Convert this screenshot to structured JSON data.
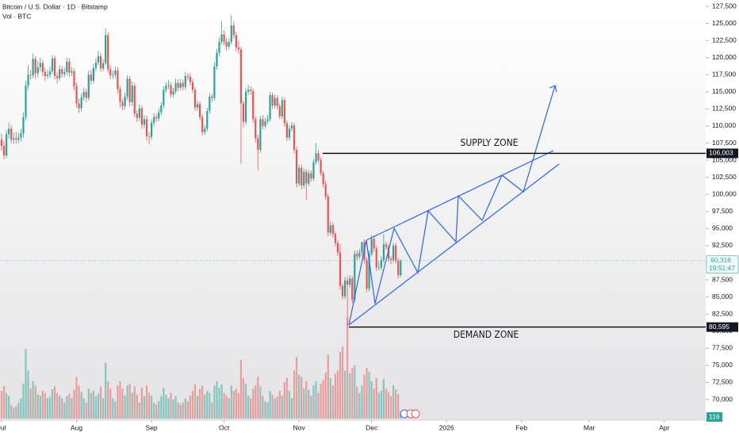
{
  "chart_data": {
    "type": "candlestick",
    "title": "Bitcoin / U.S. Dollar · 1D · Bitstamp",
    "volume_title": "Vol · BTC",
    "up_color": "#26a69a",
    "down_color": "#ef5350",
    "ylim": [
      70000,
      127500
    ],
    "yticks": [
      {
        "value": 70000,
        "label": "70,000"
      },
      {
        "value": 72500,
        "label": "72,500"
      },
      {
        "value": 75000,
        "label": "75,000"
      },
      {
        "value": 77500,
        "label": "77,500"
      },
      {
        "value": 80000,
        "label": "80,000"
      },
      {
        "value": 82500,
        "label": "82,500"
      },
      {
        "value": 85000,
        "label": "85,000"
      },
      {
        "value": 87500,
        "label": "87,500"
      },
      {
        "value": 90000,
        "label": "90,000"
      },
      {
        "value": 92500,
        "label": "92,500"
      },
      {
        "value": 95000,
        "label": "95,000"
      },
      {
        "value": 97500,
        "label": "97,500"
      },
      {
        "value": 100000,
        "label": "100,000"
      },
      {
        "value": 102500,
        "label": "102,500"
      },
      {
        "value": 105000,
        "label": "105,000"
      },
      {
        "value": 107500,
        "label": "107,500"
      },
      {
        "value": 110000,
        "label": "110,000"
      },
      {
        "value": 112500,
        "label": "112,500"
      },
      {
        "value": 115000,
        "label": "115,000"
      },
      {
        "value": 117500,
        "label": "117,500"
      },
      {
        "value": 120000,
        "label": "120,000"
      },
      {
        "value": 122500,
        "label": "122,500"
      },
      {
        "value": 125000,
        "label": "125,000"
      },
      {
        "value": 127500,
        "label": "127,500"
      }
    ],
    "xticks": [
      {
        "value": 0,
        "label": "Jul"
      },
      {
        "value": 31,
        "label": "Aug"
      },
      {
        "value": 62,
        "label": "Sep"
      },
      {
        "value": 92,
        "label": "Oct"
      },
      {
        "value": 123,
        "label": "Nov"
      },
      {
        "value": 153,
        "label": "Dec"
      },
      {
        "value": 184,
        "label": "2026"
      },
      {
        "value": 215,
        "label": "Feb"
      },
      {
        "value": 243,
        "label": "Mar"
      },
      {
        "value": 274,
        "label": "Apr"
      }
    ],
    "last_price": {
      "value": 90316,
      "label": "90,316"
    },
    "countdown": "19:51:47",
    "levels": [
      {
        "value": 106003,
        "label": "106,003",
        "name": "SUPPLY ZONE"
      },
      {
        "value": 80595,
        "label": "80,595",
        "name": "DEMAND ZONE"
      }
    ],
    "candles": [
      [
        108000,
        108900,
        106400,
        107100
      ],
      [
        107100,
        107800,
        105100,
        105700
      ],
      [
        105700,
        109400,
        105300,
        108800
      ],
      [
        108800,
        110500,
        108200,
        109600
      ],
      [
        109600,
        110100,
        107500,
        108000
      ],
      [
        108000,
        109000,
        107400,
        108200
      ],
      [
        108200,
        109100,
        107400,
        108000
      ],
      [
        108000,
        109000,
        107500,
        108300
      ],
      [
        108300,
        109600,
        107700,
        108900
      ],
      [
        108900,
        112000,
        108300,
        111300
      ],
      [
        111300,
        116600,
        110800,
        115900
      ],
      [
        115900,
        118900,
        115300,
        117500
      ],
      [
        117500,
        118200,
        116800,
        117400
      ],
      [
        117400,
        120600,
        117000,
        119800
      ],
      [
        119800,
        120200,
        116900,
        117700
      ],
      [
        117700,
        119500,
        117100,
        118600
      ],
      [
        118600,
        120000,
        118000,
        119200
      ],
      [
        119200,
        119700,
        117300,
        117900
      ],
      [
        117900,
        118500,
        116600,
        117300
      ],
      [
        117300,
        118200,
        116900,
        117500
      ],
      [
        117500,
        118700,
        117000,
        118000
      ],
      [
        118000,
        120400,
        117600,
        119900
      ],
      [
        119900,
        120300,
        116800,
        117300
      ],
      [
        117300,
        117900,
        116200,
        117000
      ],
      [
        117000,
        118900,
        116600,
        118300
      ],
      [
        118300,
        118800,
        117100,
        117600
      ],
      [
        117600,
        118500,
        117200,
        117900
      ],
      [
        117900,
        120000,
        117400,
        119400
      ],
      [
        119400,
        119900,
        117200,
        117800
      ],
      [
        117800,
        118600,
        117300,
        118000
      ],
      [
        118000,
        118400,
        115200,
        115800
      ],
      [
        115800,
        116300,
        112700,
        113300
      ],
      [
        113300,
        114000,
        111900,
        112600
      ],
      [
        112600,
        114800,
        112100,
        114200
      ],
      [
        114200,
        115600,
        113700,
        115000
      ],
      [
        115000,
        115500,
        113500,
        114100
      ],
      [
        114100,
        118100,
        113700,
        117500
      ],
      [
        117500,
        118200,
        116000,
        116600
      ],
      [
        116600,
        119100,
        116200,
        118500
      ],
      [
        118500,
        119900,
        118000,
        119300
      ],
      [
        119300,
        121000,
        118900,
        120200
      ],
      [
        120200,
        120700,
        117900,
        118400
      ],
      [
        118400,
        119800,
        118000,
        119200
      ],
      [
        119200,
        124300,
        118900,
        123300
      ],
      [
        123300,
        123700,
        117800,
        118300
      ],
      [
        118300,
        118900,
        116900,
        117400
      ],
      [
        117400,
        118100,
        116900,
        117500
      ],
      [
        117500,
        118700,
        117000,
        118100
      ],
      [
        118100,
        118600,
        114800,
        115400
      ],
      [
        115400,
        115900,
        112700,
        113500
      ],
      [
        113500,
        114000,
        112300,
        112900
      ],
      [
        112900,
        114900,
        112400,
        114300
      ],
      [
        114300,
        117400,
        113800,
        116900
      ],
      [
        116900,
        117300,
        112900,
        113500
      ],
      [
        113500,
        116500,
        113000,
        115900
      ],
      [
        115900,
        116300,
        111300,
        111800
      ],
      [
        111800,
        112300,
        110600,
        111200
      ],
      [
        111200,
        113200,
        110700,
        112600
      ],
      [
        112600,
        113000,
        109600,
        110200
      ],
      [
        110200,
        111600,
        109700,
        111000
      ],
      [
        111000,
        111500,
        107900,
        108500
      ],
      [
        108500,
        109100,
        107300,
        108400
      ],
      [
        108400,
        111000,
        108000,
        110500
      ],
      [
        110500,
        111900,
        110000,
        111300
      ],
      [
        111300,
        111800,
        110600,
        111100
      ],
      [
        111100,
        112600,
        110700,
        112000
      ],
      [
        112000,
        113500,
        111600,
        113000
      ],
      [
        113000,
        115800,
        112600,
        115300
      ],
      [
        115300,
        116400,
        114900,
        115900
      ],
      [
        115900,
        116700,
        115400,
        116000
      ],
      [
        116000,
        116400,
        114100,
        114600
      ],
      [
        114600,
        115600,
        114200,
        115100
      ],
      [
        115100,
        116900,
        114700,
        116300
      ],
      [
        116300,
        116800,
        115100,
        115600
      ],
      [
        115600,
        116900,
        115200,
        116300
      ],
      [
        116300,
        116800,
        115200,
        115700
      ],
      [
        115700,
        117900,
        115300,
        117300
      ],
      [
        117300,
        117800,
        116700,
        117200
      ],
      [
        117200,
        117700,
        115900,
        116400
      ],
      [
        116400,
        116900,
        114800,
        115300
      ],
      [
        115300,
        115700,
        112200,
        112700
      ],
      [
        112700,
        113700,
        112200,
        113200
      ],
      [
        113200,
        113600,
        110800,
        111300
      ],
      [
        111300,
        111700,
        108600,
        109100
      ],
      [
        109100,
        110100,
        108700,
        109600
      ],
      [
        109600,
        112700,
        109200,
        112200
      ],
      [
        112200,
        114800,
        111800,
        114300
      ],
      [
        114300,
        114700,
        113500,
        114100
      ],
      [
        114100,
        119300,
        113700,
        118700
      ],
      [
        118700,
        121300,
        118300,
        120700
      ],
      [
        120700,
        122900,
        120200,
        122300
      ],
      [
        122300,
        125300,
        121900,
        123400
      ],
      [
        123400,
        124000,
        121800,
        122300
      ],
      [
        122300,
        122900,
        121000,
        121600
      ],
      [
        121600,
        122800,
        121200,
        122300
      ],
      [
        122300,
        126200,
        121900,
        124700
      ],
      [
        124700,
        125300,
        122800,
        123300
      ],
      [
        123300,
        123800,
        120900,
        121500
      ],
      [
        121500,
        122500,
        120600,
        121200
      ],
      [
        121200,
        121600,
        104500,
        113300
      ],
      [
        113300,
        113700,
        109800,
        110600
      ],
      [
        110600,
        115600,
        110200,
        115000
      ],
      [
        115000,
        116000,
        114500,
        115300
      ],
      [
        115300,
        115800,
        114600,
        115100
      ],
      [
        115100,
        115500,
        110500,
        111000
      ],
      [
        111000,
        111400,
        107600,
        108200
      ],
      [
        108200,
        108700,
        103500,
        106500
      ],
      [
        106500,
        111500,
        106100,
        111000
      ],
      [
        111000,
        111600,
        109500,
        110000
      ],
      [
        110000,
        111200,
        109600,
        110700
      ],
      [
        110700,
        111600,
        110300,
        111000
      ],
      [
        111000,
        115000,
        110600,
        114500
      ],
      [
        114500,
        114900,
        112500,
        113000
      ],
      [
        113000,
        114600,
        112600,
        114100
      ],
      [
        114100,
        114500,
        112400,
        112900
      ],
      [
        112900,
        113300,
        111000,
        111400
      ],
      [
        111400,
        114300,
        111000,
        113800
      ],
      [
        113800,
        114200,
        109900,
        110400
      ],
      [
        110400,
        110800,
        107800,
        108300
      ],
      [
        108300,
        110100,
        107900,
        109600
      ],
      [
        109600,
        110600,
        109200,
        110100
      ],
      [
        110100,
        110500,
        106000,
        106500
      ],
      [
        106500,
        107000,
        101000,
        101600
      ],
      [
        101600,
        104400,
        101200,
        103900
      ],
      [
        103900,
        104300,
        100800,
        101300
      ],
      [
        101300,
        103800,
        100900,
        103300
      ],
      [
        103300,
        103700,
        99200,
        101600
      ],
      [
        101600,
        103600,
        101200,
        103100
      ],
      [
        103100,
        103500,
        101900,
        102300
      ],
      [
        102300,
        105200,
        101900,
        104700
      ],
      [
        104700,
        107500,
        104300,
        106000
      ],
      [
        106000,
        106500,
        104600,
        105000
      ],
      [
        105000,
        105400,
        102700,
        103100
      ],
      [
        103100,
        103500,
        101000,
        101500
      ],
      [
        101500,
        102000,
        99200,
        99700
      ],
      [
        99700,
        100100,
        93900,
        94400
      ],
      [
        94400,
        96000,
        94000,
        95500
      ],
      [
        95500,
        95900,
        93700,
        94200
      ],
      [
        94200,
        94600,
        92400,
        92900
      ],
      [
        92900,
        93300,
        91000,
        91500
      ],
      [
        91500,
        92800,
        86100,
        86600
      ],
      [
        86600,
        87000,
        84600,
        85100
      ],
      [
        85100,
        87900,
        84700,
        87400
      ],
      [
        87400,
        88000,
        80595,
        86800
      ],
      [
        86800,
        88200,
        86400,
        87700
      ],
      [
        87700,
        88100,
        84100,
        84600
      ],
      [
        84600,
        91800,
        84200,
        91300
      ],
      [
        91300,
        91800,
        90400,
        90900
      ],
      [
        90900,
        92000,
        90500,
        91500
      ],
      [
        91500,
        93100,
        91100,
        93000
      ],
      [
        93000,
        93400,
        89900,
        90400
      ],
      [
        90400,
        90800,
        85700,
        86200
      ],
      [
        86200,
        91800,
        85800,
        91300
      ],
      [
        91300,
        94000,
        90900,
        93500
      ],
      [
        93500,
        94000,
        91600,
        92100
      ],
      [
        92100,
        92500,
        88800,
        89300
      ],
      [
        89300,
        90200,
        88900,
        89300
      ],
      [
        89300,
        90900,
        88900,
        90400
      ],
      [
        90400,
        94200,
        90000,
        92700
      ],
      [
        92700,
        93100,
        91900,
        92300
      ],
      [
        92300,
        92700,
        90100,
        90600
      ],
      [
        90600,
        91000,
        89800,
        90400
      ],
      [
        90400,
        92900,
        90000,
        92500
      ],
      [
        92500,
        92900,
        89900,
        90300
      ],
      [
        90300,
        90700,
        87700,
        88200
      ],
      [
        88200,
        90500,
        87900,
        90316
      ]
    ],
    "volumes": [
      520,
      610,
      480,
      420,
      250,
      200,
      230,
      300,
      380,
      650,
      1300,
      900,
      560,
      700,
      620,
      450,
      430,
      520,
      480,
      380,
      410,
      550,
      600,
      480,
      430,
      380,
      300,
      420,
      470,
      380,
      540,
      780,
      620,
      500,
      380,
      300,
      560,
      480,
      520,
      420,
      470,
      600,
      380,
      1050,
      700,
      560,
      380,
      320,
      620,
      700,
      560,
      430,
      620,
      650,
      480,
      600,
      450,
      300,
      580,
      420,
      620,
      480,
      430,
      300,
      260,
      330,
      420,
      580,
      450,
      380,
      480,
      360,
      420,
      300,
      260,
      300,
      380,
      320,
      430,
      520,
      650,
      430,
      560,
      620,
      450,
      520,
      480,
      300,
      620,
      700,
      580,
      640,
      480,
      430,
      380,
      620,
      520,
      560,
      480,
      1100,
      760,
      650,
      430,
      380,
      560,
      620,
      780,
      600,
      430,
      320,
      300,
      520,
      450,
      380,
      420,
      520,
      430,
      680,
      760,
      520,
      380,
      900,
      1150,
      820,
      780,
      560,
      700,
      540,
      430,
      620,
      700,
      480,
      650,
      720,
      860,
      1200,
      760,
      620,
      840,
      900,
      1250,
      1350,
      900,
      1900,
      850,
      950,
      1000,
      600,
      480,
      620,
      820,
      950,
      880,
      700,
      560,
      760,
      480,
      520,
      740,
      560,
      500,
      420,
      620,
      540,
      460,
      116
    ]
  }
}
